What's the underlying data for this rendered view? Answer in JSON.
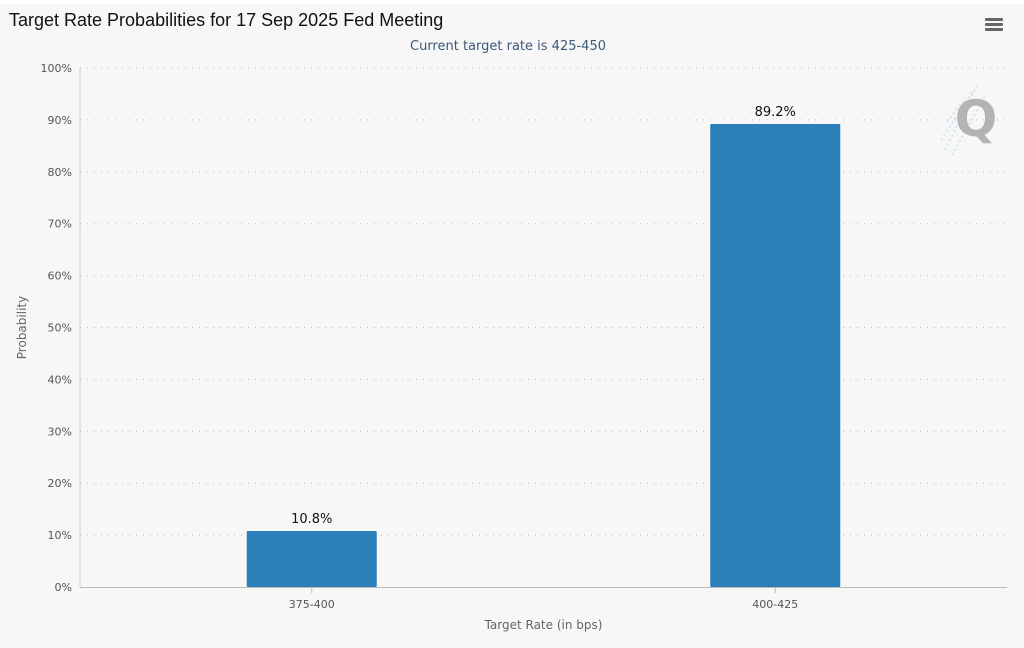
{
  "chart_data": {
    "type": "bar",
    "title": "Target Rate Probabilities for 17 Sep 2025 Fed Meeting",
    "subtitle": "Current target rate is 425-450",
    "xlabel": "Target Rate (in bps)",
    "ylabel": "Probability",
    "categories": [
      "375-400",
      "400-425"
    ],
    "values": [
      10.8,
      89.2
    ],
    "data_labels": [
      "10.8%",
      "89.2%"
    ],
    "ylim": [
      0,
      100
    ],
    "yticks": [
      0,
      10,
      20,
      30,
      40,
      50,
      60,
      70,
      80,
      90,
      100
    ],
    "ytick_labels": [
      "0%",
      "10%",
      "20%",
      "30%",
      "40%",
      "50%",
      "60%",
      "70%",
      "80%",
      "90%",
      "100%"
    ],
    "grid": true,
    "legend": "none",
    "bar_color": "#2a7fb8",
    "logo_glyph": "Q"
  },
  "menu": {
    "icon": "hamburger-menu-icon"
  }
}
